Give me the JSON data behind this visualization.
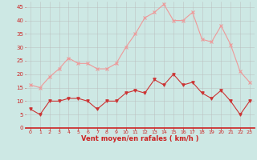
{
  "hours": [
    0,
    1,
    2,
    3,
    4,
    5,
    6,
    7,
    8,
    9,
    10,
    11,
    12,
    13,
    14,
    15,
    16,
    17,
    18,
    19,
    20,
    21,
    22,
    23
  ],
  "wind_avg": [
    7,
    5,
    10,
    10,
    11,
    11,
    10,
    7,
    10,
    10,
    13,
    14,
    13,
    18,
    16,
    20,
    16,
    17,
    13,
    11,
    14,
    10,
    5,
    10
  ],
  "wind_gust": [
    16,
    15,
    19,
    22,
    26,
    24,
    24,
    22,
    22,
    24,
    30,
    35,
    41,
    43,
    46,
    40,
    40,
    43,
    33,
    32,
    38,
    31,
    21,
    17
  ],
  "bg_color": "#cde8e4",
  "grid_color": "#bbbbbb",
  "line_color_avg": "#cc3333",
  "line_color_gust": "#ee9999",
  "xlabel": "Vent moyen/en rafales ( km/h )",
  "xlabel_color": "#cc2222",
  "tick_color": "#cc2222",
  "ylabel_ticks": [
    0,
    5,
    10,
    15,
    20,
    25,
    30,
    35,
    40,
    45
  ],
  "ylim": [
    0,
    47
  ],
  "xlim": [
    -0.5,
    23.5
  ]
}
